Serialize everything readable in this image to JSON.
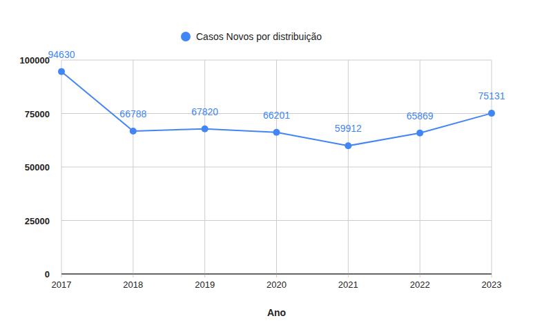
{
  "chart_data": {
    "type": "line",
    "categories": [
      "2017",
      "2018",
      "2019",
      "2020",
      "2021",
      "2022",
      "2023"
    ],
    "series": [
      {
        "name": "Casos Novos por distribuição",
        "color": "#4285f4",
        "marker": "circle",
        "values": [
          94630,
          66788,
          67820,
          66201,
          59912,
          65869,
          75131
        ]
      }
    ],
    "x_label": "Ano",
    "ylim": [
      0,
      100000
    ],
    "yticks": [
      0,
      25000,
      50000,
      75000,
      100000
    ],
    "grid": true,
    "legend": "top",
    "data_labels": true
  }
}
